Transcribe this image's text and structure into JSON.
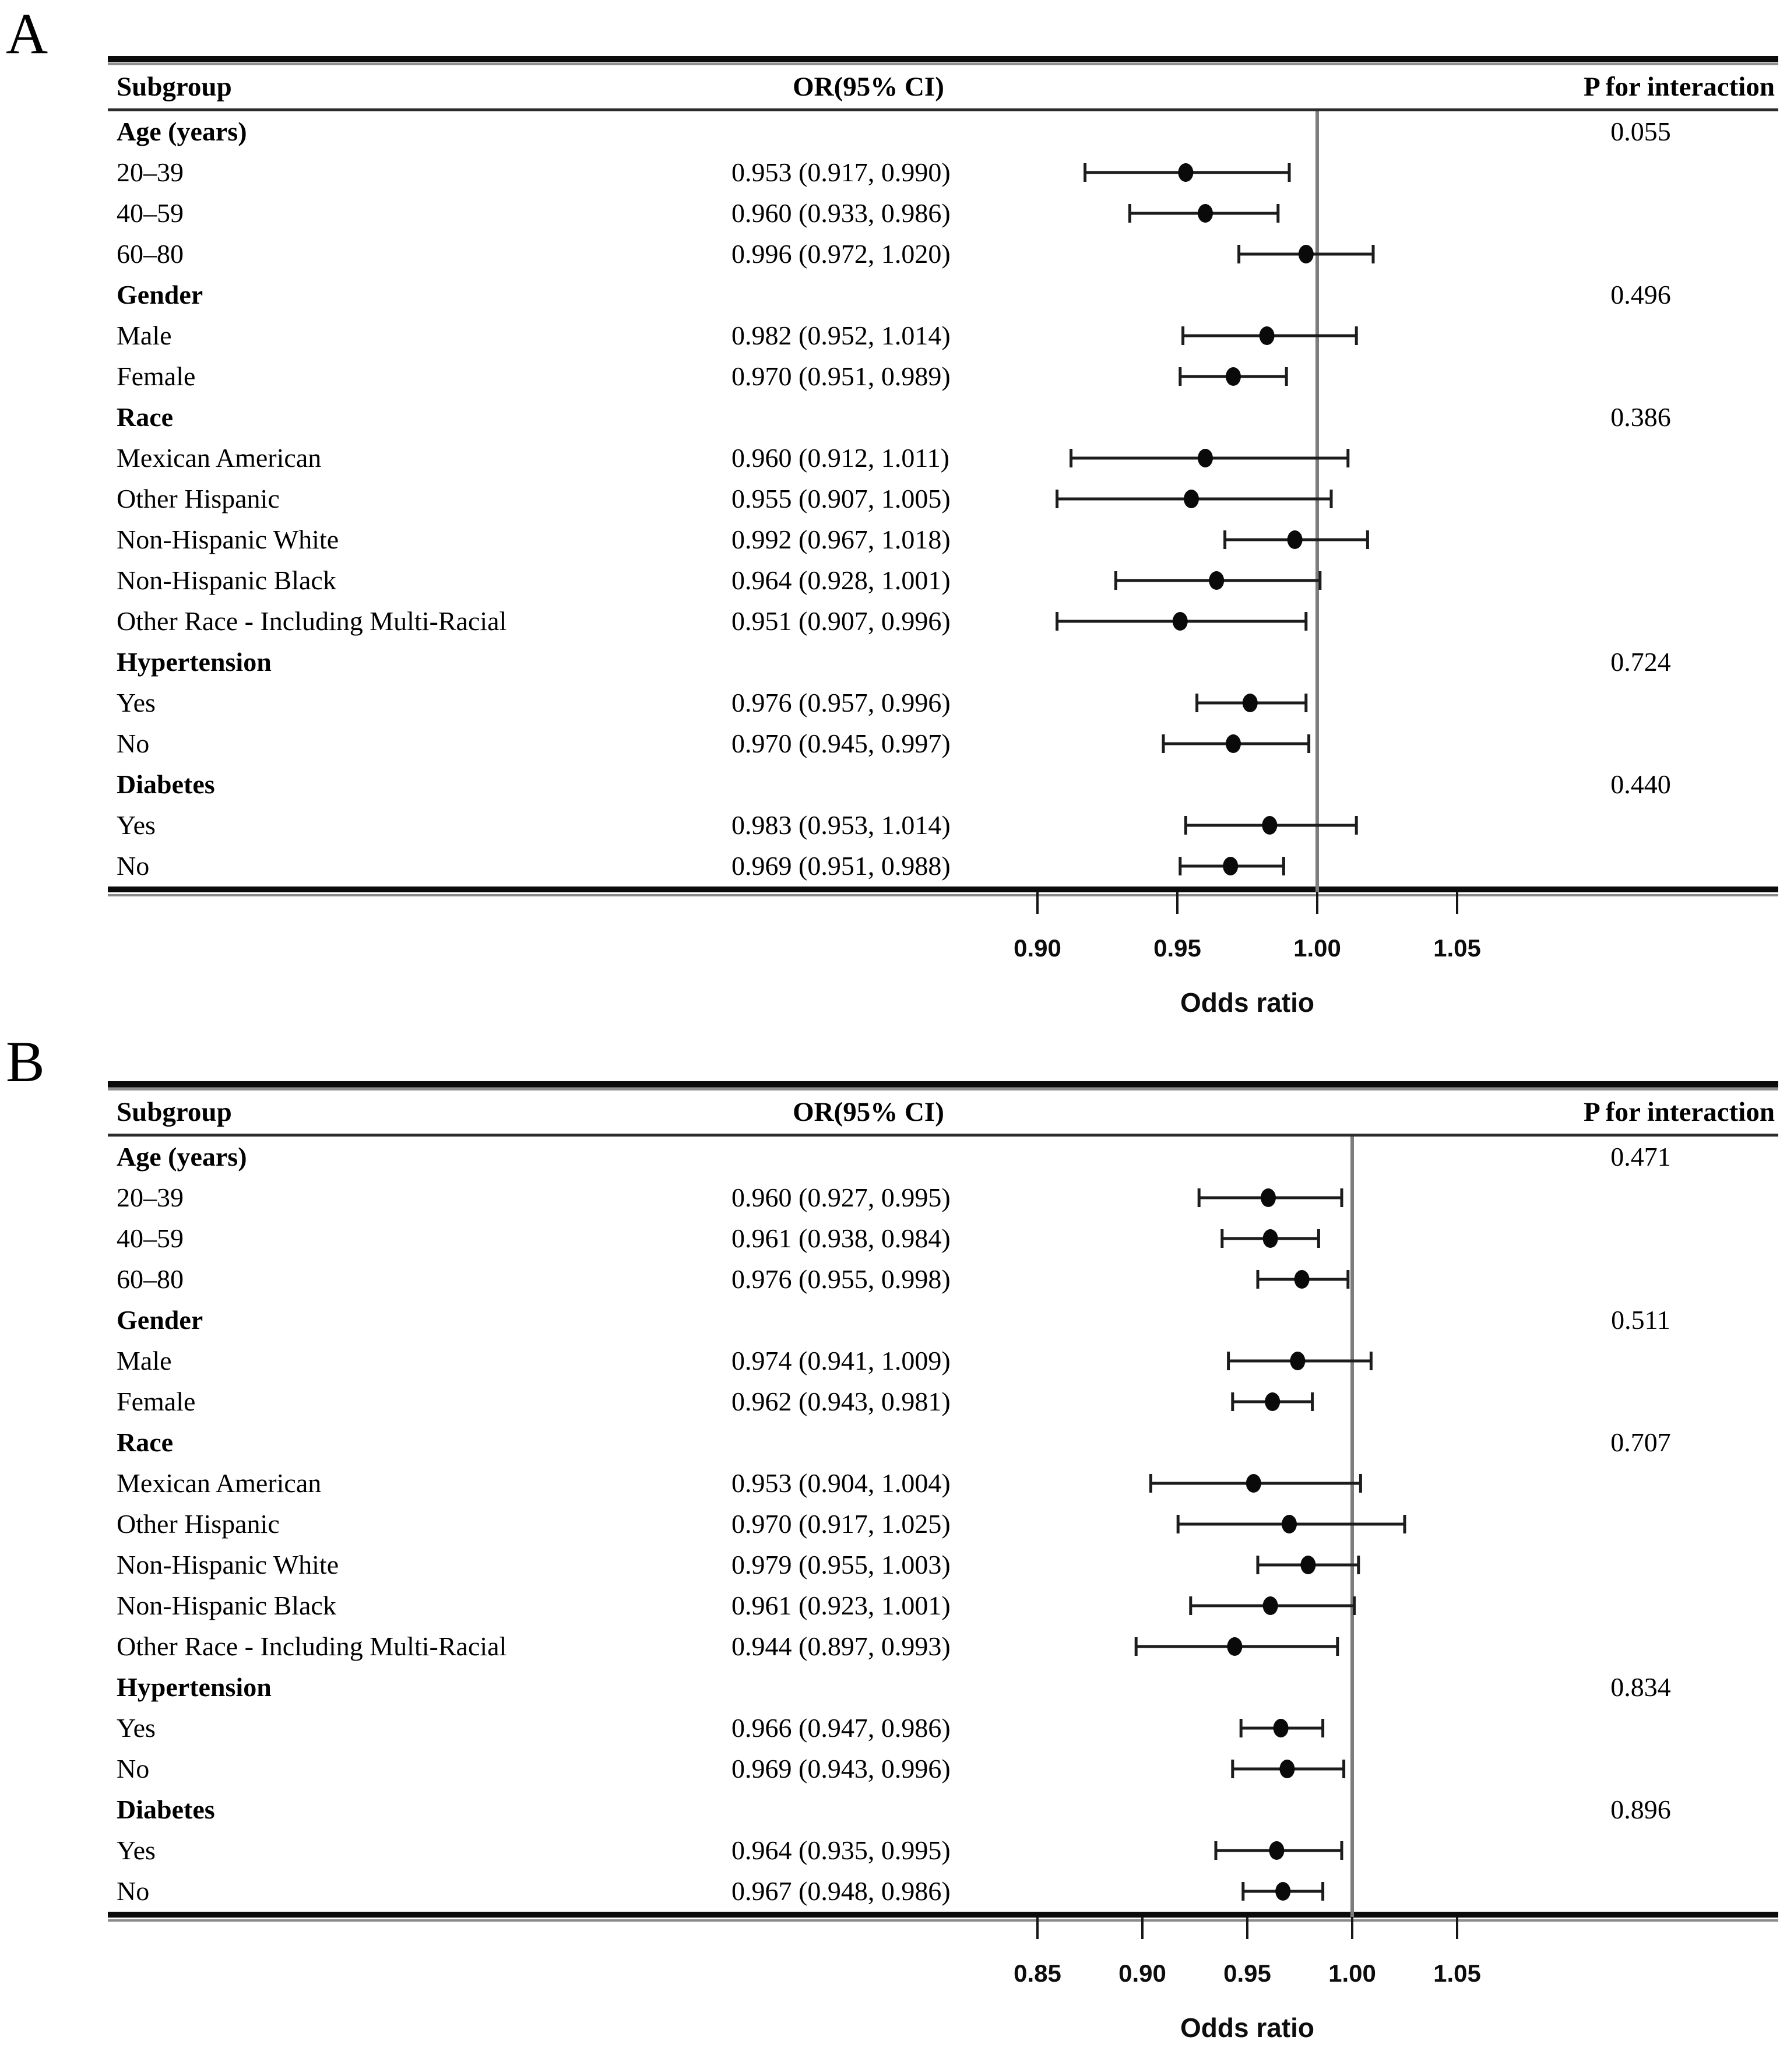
{
  "chart_data": [
    {
      "type": "scatter",
      "variant": "forest-plot",
      "panel_label": "A",
      "columns": {
        "subgroup": "Subgroup",
        "or_ci": "OR(95% CI)",
        "p_interaction": "P for interaction"
      },
      "axis": {
        "xlabel": "Odds ratio",
        "ticks": [
          0.9,
          0.95,
          1.0,
          1.05
        ],
        "tick_labels": [
          "0.90",
          "0.95",
          "1.00",
          "1.05"
        ],
        "ref_line": 1.0,
        "xlim": [
          0.86,
          1.12
        ],
        "grid": false
      },
      "rows": [
        {
          "type": "group",
          "label": "Age (years)",
          "p": "0.055"
        },
        {
          "type": "item",
          "label": "20–39",
          "or": 0.953,
          "lo": 0.917,
          "hi": 0.99,
          "or_text": "0.953 (0.917, 0.990)"
        },
        {
          "type": "item",
          "label": "40–59",
          "or": 0.96,
          "lo": 0.933,
          "hi": 0.986,
          "or_text": "0.960 (0.933, 0.986)"
        },
        {
          "type": "item",
          "label": "60–80",
          "or": 0.996,
          "lo": 0.972,
          "hi": 1.02,
          "or_text": "0.996 (0.972, 1.020)"
        },
        {
          "type": "group",
          "label": "Gender",
          "p": "0.496"
        },
        {
          "type": "item",
          "label": "Male",
          "or": 0.982,
          "lo": 0.952,
          "hi": 1.014,
          "or_text": "0.982 (0.952, 1.014)"
        },
        {
          "type": "item",
          "label": "Female",
          "or": 0.97,
          "lo": 0.951,
          "hi": 0.989,
          "or_text": "0.970 (0.951, 0.989)"
        },
        {
          "type": "group",
          "label": "Race",
          "p": "0.386"
        },
        {
          "type": "item",
          "label": "Mexican American",
          "or": 0.96,
          "lo": 0.912,
          "hi": 1.011,
          "or_text": "0.960 (0.912, 1.011)"
        },
        {
          "type": "item",
          "label": "Other Hispanic",
          "or": 0.955,
          "lo": 0.907,
          "hi": 1.005,
          "or_text": "0.955 (0.907, 1.005)"
        },
        {
          "type": "item",
          "label": "Non-Hispanic White",
          "or": 0.992,
          "lo": 0.967,
          "hi": 1.018,
          "or_text": "0.992 (0.967, 1.018)"
        },
        {
          "type": "item",
          "label": "Non-Hispanic Black",
          "or": 0.964,
          "lo": 0.928,
          "hi": 1.001,
          "or_text": "0.964 (0.928, 1.001)"
        },
        {
          "type": "item",
          "label": "Other Race - Including Multi-Racial",
          "or": 0.951,
          "lo": 0.907,
          "hi": 0.996,
          "or_text": "0.951 (0.907, 0.996)"
        },
        {
          "type": "group",
          "label": "Hypertension",
          "p": "0.724"
        },
        {
          "type": "item",
          "label": "Yes",
          "or": 0.976,
          "lo": 0.957,
          "hi": 0.996,
          "or_text": "0.976 (0.957, 0.996)"
        },
        {
          "type": "item",
          "label": "No",
          "or": 0.97,
          "lo": 0.945,
          "hi": 0.997,
          "or_text": "0.970 (0.945, 0.997)"
        },
        {
          "type": "group",
          "label": "Diabetes",
          "p": "0.440"
        },
        {
          "type": "item",
          "label": "Yes",
          "or": 0.983,
          "lo": 0.953,
          "hi": 1.014,
          "or_text": "0.983 (0.953, 1.014)"
        },
        {
          "type": "item",
          "label": "No",
          "or": 0.969,
          "lo": 0.951,
          "hi": 0.988,
          "or_text": "0.969 (0.951, 0.988)"
        }
      ]
    },
    {
      "type": "scatter",
      "variant": "forest-plot",
      "panel_label": "B",
      "columns": {
        "subgroup": "Subgroup",
        "or_ci": "OR(95% CI)",
        "p_interaction": "P for interaction"
      },
      "axis": {
        "xlabel": "Odds ratio",
        "ticks": [
          0.85,
          0.9,
          0.95,
          1.0,
          1.05
        ],
        "tick_labels": [
          "0.85",
          "0.90",
          "0.95",
          "1.00",
          "1.05"
        ],
        "ref_line": 1.0,
        "xlim": [
          0.81,
          1.16
        ],
        "grid": false
      },
      "rows": [
        {
          "type": "group",
          "label": "Age (years)",
          "p": "0.471"
        },
        {
          "type": "item",
          "label": "20–39",
          "or": 0.96,
          "lo": 0.927,
          "hi": 0.995,
          "or_text": "0.960 (0.927, 0.995)"
        },
        {
          "type": "item",
          "label": "40–59",
          "or": 0.961,
          "lo": 0.938,
          "hi": 0.984,
          "or_text": "0.961 (0.938, 0.984)"
        },
        {
          "type": "item",
          "label": "60–80",
          "or": 0.976,
          "lo": 0.955,
          "hi": 0.998,
          "or_text": "0.976 (0.955, 0.998)"
        },
        {
          "type": "group",
          "label": "Gender",
          "p": "0.511"
        },
        {
          "type": "item",
          "label": "Male",
          "or": 0.974,
          "lo": 0.941,
          "hi": 1.009,
          "or_text": "0.974 (0.941, 1.009)"
        },
        {
          "type": "item",
          "label": "Female",
          "or": 0.962,
          "lo": 0.943,
          "hi": 0.981,
          "or_text": "0.962 (0.943, 0.981)"
        },
        {
          "type": "group",
          "label": "Race",
          "p": "0.707"
        },
        {
          "type": "item",
          "label": "Mexican American",
          "or": 0.953,
          "lo": 0.904,
          "hi": 1.004,
          "or_text": "0.953 (0.904, 1.004)"
        },
        {
          "type": "item",
          "label": "Other Hispanic",
          "or": 0.97,
          "lo": 0.917,
          "hi": 1.025,
          "or_text": "0.970 (0.917, 1.025)"
        },
        {
          "type": "item",
          "label": "Non-Hispanic White",
          "or": 0.979,
          "lo": 0.955,
          "hi": 1.003,
          "or_text": "0.979 (0.955, 1.003)"
        },
        {
          "type": "item",
          "label": "Non-Hispanic Black",
          "or": 0.961,
          "lo": 0.923,
          "hi": 1.001,
          "or_text": "0.961 (0.923, 1.001)"
        },
        {
          "type": "item",
          "label": "Other Race - Including Multi-Racial",
          "or": 0.944,
          "lo": 0.897,
          "hi": 0.993,
          "or_text": "0.944 (0.897, 0.993)"
        },
        {
          "type": "group",
          "label": "Hypertension",
          "p": "0.834"
        },
        {
          "type": "item",
          "label": "Yes",
          "or": 0.966,
          "lo": 0.947,
          "hi": 0.986,
          "or_text": "0.966 (0.947, 0.986)"
        },
        {
          "type": "item",
          "label": "No",
          "or": 0.969,
          "lo": 0.943,
          "hi": 0.996,
          "or_text": "0.969 (0.943, 0.996)"
        },
        {
          "type": "group",
          "label": "Diabetes",
          "p": "0.896"
        },
        {
          "type": "item",
          "label": "Yes",
          "or": 0.964,
          "lo": 0.935,
          "hi": 0.995,
          "or_text": "0.964 (0.935, 0.995)"
        },
        {
          "type": "item",
          "label": "No",
          "or": 0.967,
          "lo": 0.948,
          "hi": 0.986,
          "or_text": "0.967 (0.948, 0.986)"
        }
      ]
    }
  ],
  "style": {
    "marker_color": "#0a0a0a",
    "bar_color": "#1c1c1c",
    "ref_line_color": "#7d7d7d",
    "text_color": "#000000"
  }
}
